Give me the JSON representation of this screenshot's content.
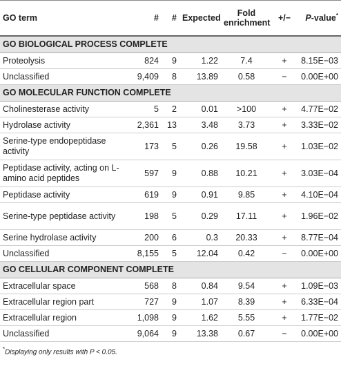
{
  "table": {
    "header": [
      "GO term",
      "#",
      "#",
      "Expected",
      "Fold enrichment",
      "+/−",
      {
        "italic": "P",
        "text": "-value",
        "sup": "*"
      }
    ],
    "sections": [
      {
        "title": "GO BIOLOGICAL PROCESS COMPLETE",
        "rows": [
          [
            "Proteolysis",
            "824",
            "9",
            "1.22",
            "7.4",
            "+",
            "8.15E−03"
          ],
          [
            "Unclassified",
            "9,409",
            "8",
            "13.89",
            "0.58",
            "−",
            "0.00E+00"
          ]
        ]
      },
      {
        "title": "GO MOLECULAR FUNCTION COMPLETE",
        "rows": [
          [
            "Cholinesterase activity",
            "5",
            "2",
            "0.01",
            ">100",
            "+",
            "4.77E−02"
          ],
          [
            "Hydrolase activity",
            "2,361",
            "13",
            "3.48",
            "3.73",
            "+",
            "3.33E−02"
          ],
          [
            "Serine-type endopeptidase activity",
            "173",
            "5",
            "0.26",
            "19.58",
            "+",
            "1.03E−02"
          ],
          [
            "Peptidase activity, acting on L-amino acid peptides",
            "597",
            "9",
            "0.88",
            "10.21",
            "+",
            "3.03E−04"
          ],
          [
            "Peptidase activity",
            "619",
            "9",
            "0.91",
            "9.85",
            "+",
            "4.10E−04"
          ],
          [
            "Serine-type peptidase activity",
            "198",
            "5",
            "0.29",
            "17.11",
            "+",
            "1.96E−02"
          ],
          [
            "Serine hydrolase activity",
            "200",
            "6",
            "0.3",
            "20.33",
            "+",
            "8.77E−04"
          ],
          [
            "Unclassified",
            "8,155",
            "5",
            "12.04",
            "0.42",
            "−",
            "0.00E+00"
          ]
        ]
      },
      {
        "title": "GO CELLULAR COMPONENT COMPLETE",
        "rows": [
          [
            "Extracellular space",
            "568",
            "8",
            "0.84",
            "9.54",
            "+",
            "1.09E−03"
          ],
          [
            "Extracellular region part",
            "727",
            "9",
            "1.07",
            "8.39",
            "+",
            "6.33E−04"
          ],
          [
            "Extracellular region",
            "1,098",
            "9",
            "1.62",
            "5.55",
            "+",
            "1.77E−02"
          ],
          [
            "Unclassified",
            "9,064",
            "9",
            "13.38",
            "0.67",
            "−",
            "0.00E+00"
          ]
        ]
      }
    ],
    "footnote": {
      "sup": "*",
      "text": "Displaying only results with ",
      "italic": "P",
      "rest": " < 0.05."
    }
  }
}
